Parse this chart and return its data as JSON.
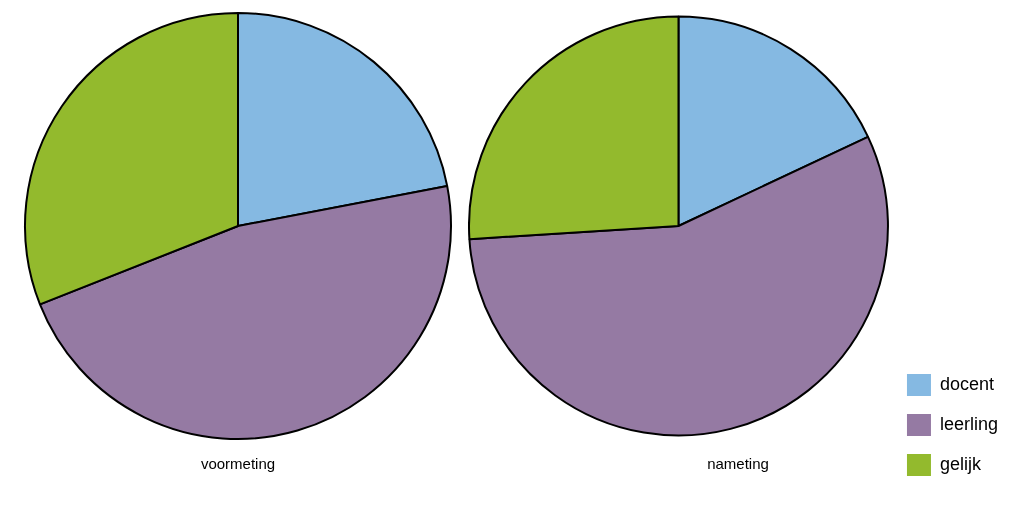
{
  "chart_data": [
    {
      "type": "pie",
      "title": "voormeting",
      "categories": [
        null,
        null,
        null
      ],
      "values": [
        22,
        47,
        31
      ],
      "colors": [
        "#85b9e2",
        "#957aa3",
        "#93ba2d"
      ]
    },
    {
      "type": "pie",
      "title": "nameting",
      "categories": [
        "docent",
        "leerling",
        "gelijk"
      ],
      "values": [
        18,
        56,
        26
      ],
      "colors": [
        "#85b9e2",
        "#957aa3",
        "#93ba2d"
      ],
      "legend": "bottom right"
    }
  ]
}
